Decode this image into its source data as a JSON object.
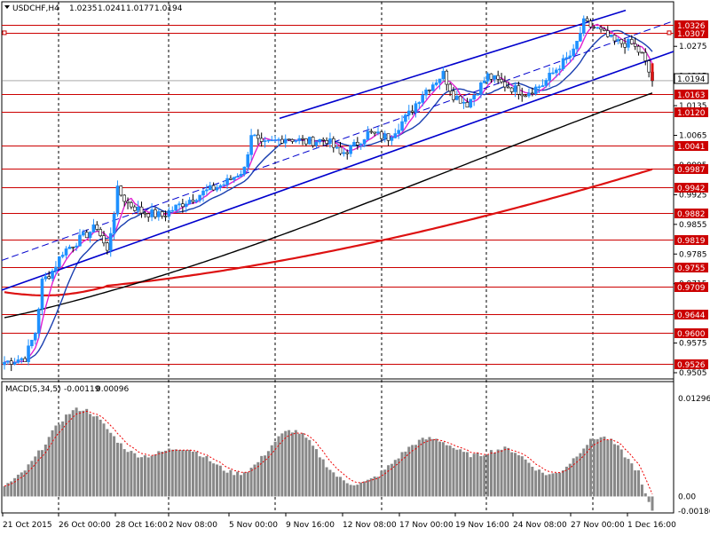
{
  "header": {
    "symbol": "USDCHF,H4",
    "open": "1.0235",
    "high": "1.0241",
    "low": "1.0177",
    "close": "1.0194"
  },
  "colors": {
    "background": "#ffffff",
    "bull_candle": "#1e90ff",
    "bear_candle": "#000000",
    "channel": "#0000cd",
    "ma_fast": "#e020d0",
    "ma_mid": "#1a3fb0",
    "ma_slow": "#000000",
    "ma_long": "#dd1111",
    "level_line": "#cc0000",
    "current_price": "#000000",
    "macd_histogram": "#888888",
    "macd_signal": "#ee0000"
  },
  "price_axis": {
    "min": 0.9505,
    "max": 1.0355,
    "current_price": "1.0194",
    "ticks": [
      "1.0275",
      "1.0205",
      "1.0135",
      "1.0065",
      "0.9995",
      "0.9925",
      "0.9855",
      "0.9785",
      "0.9715",
      "0.9645",
      "0.9575",
      "0.9505"
    ]
  },
  "levels": [
    "1.0326",
    "1.0307",
    "1.0163",
    "1.0120",
    "1.0041",
    "0.9987",
    "0.9942",
    "0.9882",
    "0.9819",
    "0.9755",
    "0.9709",
    "0.9644",
    "0.9600",
    "0.9526"
  ],
  "time_axis": {
    "labels": [
      "21 Oct 2015",
      "26 Oct 00:00",
      "28 Oct 16:00",
      "2 Nov 08:00",
      "5 Nov 00:00",
      "9 Nov 16:00",
      "12 Nov 08:00",
      "17 Nov 00:00",
      "19 Nov 16:00",
      "24 Nov 08:00",
      "27 Nov 00:00",
      "1 Dec 16:00"
    ]
  },
  "macd": {
    "label": "MACD(5,34,5)",
    "value1": "-0.00119",
    "value2": "0.00096",
    "max": 0.01296,
    "min": -0.00186,
    "ticks": [
      "0.01296",
      "0.00",
      "-0.00186"
    ]
  },
  "chart_data": {
    "type": "candlestick",
    "symbol": "USDCHF",
    "timeframe": "H4",
    "ylim": [
      0.9505,
      1.0355
    ],
    "key_points": [
      {
        "t": "21 Oct 2015",
        "close": 0.9535
      },
      {
        "t": "26 Oct 00:00",
        "close": 0.978
      },
      {
        "t": "28 Oct 16:00",
        "close": 0.991
      },
      {
        "t": "2 Nov 08:00",
        "close": 0.989
      },
      {
        "t": "5 Nov 00:00",
        "close": 0.9975
      },
      {
        "t": "9 Nov 16:00",
        "close": 1.005
      },
      {
        "t": "12 Nov 08:00",
        "close": 1.002
      },
      {
        "t": "17 Nov 00:00",
        "close": 1.0145
      },
      {
        "t": "19 Nov 16:00",
        "close": 1.0185
      },
      {
        "t": "24 Nov 08:00",
        "close": 1.016
      },
      {
        "t": "27 Nov 00:00",
        "close": 1.0315
      },
      {
        "t": "1 Dec 16:00",
        "close": 1.0194
      }
    ],
    "macd_histogram_min": -0.00186,
    "macd_histogram_max": 0.01296
  }
}
